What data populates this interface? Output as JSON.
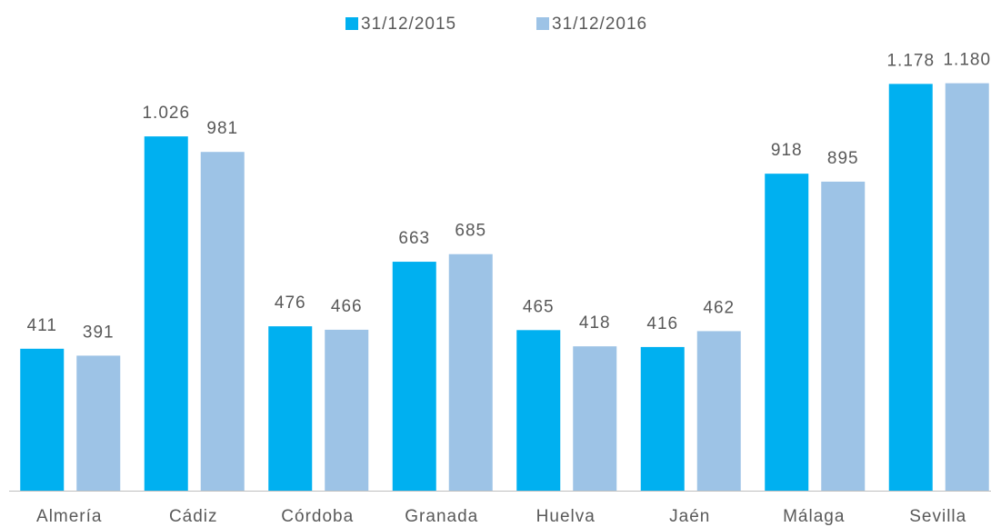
{
  "chart_data": {
    "type": "bar",
    "categories": [
      "Almería",
      "Cádiz",
      "Córdoba",
      "Granada",
      "Huelva",
      "Jaén",
      "Málaga",
      "Sevilla"
    ],
    "series": [
      {
        "name": "31/12/2015",
        "color": "#00b0f0",
        "values": [
          411,
          1026,
          476,
          663,
          465,
          416,
          918,
          1178
        ],
        "value_labels": [
          "411",
          "1.026",
          "476",
          "663",
          "465",
          "416",
          "918",
          "1.178"
        ]
      },
      {
        "name": "31/12/2016",
        "color": "#9dc3e6",
        "values": [
          391,
          981,
          466,
          685,
          418,
          462,
          895,
          1180
        ],
        "value_labels": [
          "391",
          "981",
          "466",
          "685",
          "418",
          "462",
          "895",
          "1.180"
        ]
      }
    ],
    "ylim": [
      0,
      1400
    ],
    "legend": "top"
  }
}
